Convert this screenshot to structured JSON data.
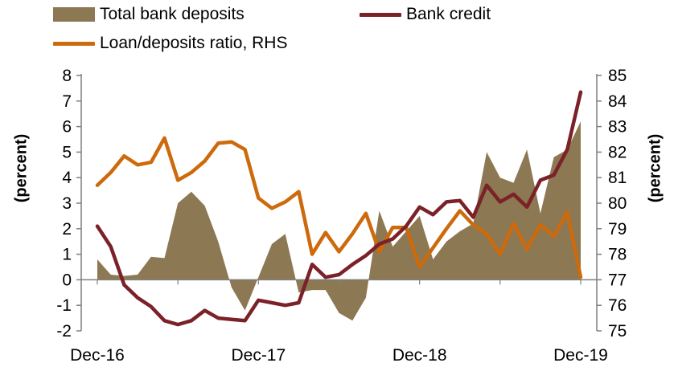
{
  "colors": {
    "deposits": "#8c7853",
    "credit": "#7b2128",
    "ratio": "#cd6a0c",
    "axis": "#7f7f7f"
  },
  "chart_data": {
    "type": "area+line",
    "x_tick_labels": [
      "Dec-16",
      "Dec-17",
      "Dec-18",
      "Dec-19"
    ],
    "x_ticks_at_month_index": [
      0,
      12,
      24,
      36
    ],
    "ylabel_left": "(percent)",
    "ylabel_right": "(percent)",
    "ylim_left": [
      -2,
      8
    ],
    "ylim_right": [
      75,
      85
    ],
    "left_ticks": [
      "8",
      "7",
      "6",
      "5",
      "4",
      "3",
      "2",
      "1",
      "0",
      "-1",
      "-2"
    ],
    "right_ticks": [
      "85",
      "84",
      "83",
      "82",
      "81",
      "80",
      "79",
      "78",
      "77",
      "76",
      "75"
    ],
    "legend": [
      "Total bank deposits",
      "Bank credit",
      "Loan/deposits ratio, RHS"
    ],
    "series": [
      {
        "name": "Total bank deposits",
        "type": "area",
        "axis": "left",
        "values": [
          0.8,
          0.2,
          0.15,
          0.2,
          0.9,
          0.85,
          3.0,
          3.45,
          2.9,
          1.5,
          -0.3,
          -1.2,
          0.1,
          1.4,
          1.8,
          -0.5,
          -0.4,
          -0.4,
          -1.3,
          -1.6,
          -0.7,
          2.7,
          1.3,
          1.9,
          2.5,
          0.8,
          1.5,
          1.9,
          2.2,
          5.0,
          4.0,
          3.8,
          5.1,
          2.6,
          4.8,
          5.1,
          6.2
        ]
      },
      {
        "name": "Bank credit",
        "type": "line",
        "axis": "left",
        "values": [
          2.1,
          1.3,
          -0.2,
          -0.7,
          -1.05,
          -1.6,
          -1.75,
          -1.6,
          -1.2,
          -1.5,
          -1.55,
          -1.6,
          -0.8,
          -0.9,
          -1.0,
          -0.9,
          0.6,
          0.1,
          0.2,
          0.6,
          0.95,
          1.4,
          1.6,
          2.1,
          2.85,
          2.55,
          3.05,
          3.1,
          2.45,
          3.7,
          3.05,
          3.35,
          2.85,
          3.9,
          4.1,
          5.1,
          7.35
        ]
      },
      {
        "name": "Loan/deposits ratio, RHS",
        "type": "line",
        "axis": "right",
        "values": [
          80.7,
          81.2,
          81.85,
          81.5,
          81.6,
          82.55,
          80.9,
          81.2,
          81.65,
          82.35,
          82.4,
          82.1,
          80.2,
          79.8,
          80.05,
          80.45,
          78.0,
          78.85,
          78.1,
          78.8,
          79.6,
          78.1,
          79.05,
          79.05,
          77.5,
          78.25,
          79.0,
          79.7,
          79.15,
          78.8,
          78.0,
          79.2,
          78.2,
          79.15,
          78.7,
          79.65,
          77.1
        ]
      }
    ]
  }
}
